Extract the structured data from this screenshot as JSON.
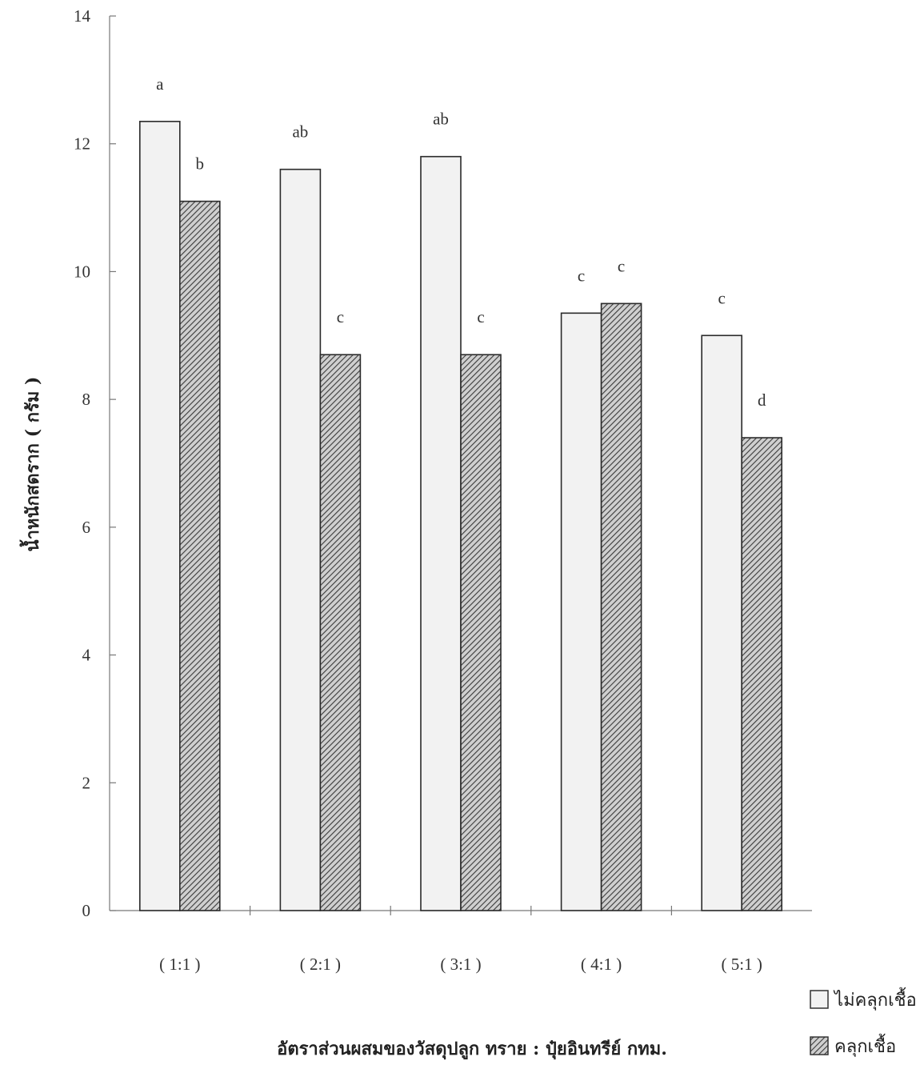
{
  "chart_data": {
    "type": "bar",
    "title": "",
    "xlabel": "อัตราส่วนผสมของวัสดุปลูก ทราย : ปุ๋ยอินทรีย์ กทม.",
    "ylabel": "น้ำหนักสดราก ( กรัม )",
    "ylim": [
      0,
      14
    ],
    "yticks": [
      0,
      2,
      4,
      6,
      8,
      10,
      12,
      14
    ],
    "grid": false,
    "legend_position": "bottom-right",
    "categories": [
      "( 1:1 )",
      "( 2:1 )",
      "( 3:1 )",
      "( 4:1 )",
      "( 5:1 )"
    ],
    "series": [
      {
        "name": "ไม่คลุกเชื้อ",
        "values": [
          12.35,
          11.6,
          11.8,
          9.35,
          9.0
        ],
        "significance": [
          "a",
          "ab",
          "ab",
          "c",
          "c"
        ],
        "color": "#f2f2f2",
        "pattern": "plain"
      },
      {
        "name": "คลุกเชื้อ",
        "values": [
          11.1,
          8.7,
          8.7,
          9.5,
          7.4
        ],
        "significance": [
          "b",
          "c",
          "c",
          "c",
          "d"
        ],
        "color": "#555555",
        "pattern": "hatched"
      }
    ]
  }
}
